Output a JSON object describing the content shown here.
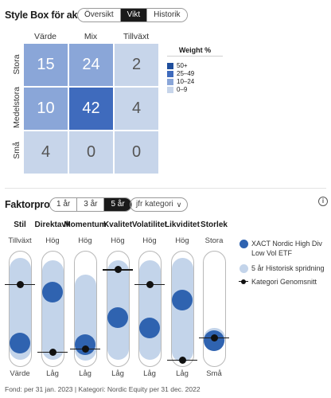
{
  "stylebox": {
    "title": "Style Box för aktier",
    "tabs": [
      {
        "label": "Översikt",
        "active": false
      },
      {
        "label": "Vikt",
        "active": true
      },
      {
        "label": "Historik",
        "active": false
      }
    ],
    "columns": [
      "Värde",
      "Mix",
      "Tillväxt"
    ],
    "rows": [
      "Stora",
      "Medelstora",
      "Små"
    ],
    "cells": [
      [
        {
          "value": "15",
          "color": "#8aa6d8"
        },
        {
          "value": "24",
          "color": "#8aa6d8"
        },
        {
          "value": "2",
          "color": "#c7d5ea"
        }
      ],
      [
        {
          "value": "10",
          "color": "#8aa6d8"
        },
        {
          "value": "42",
          "color": "#3f6bbd"
        },
        {
          "value": "4",
          "color": "#c7d5ea"
        }
      ],
      [
        {
          "value": "4",
          "color": "#c7d5ea"
        },
        {
          "value": "0",
          "color": "#c7d5ea"
        },
        {
          "value": "0",
          "color": "#c7d5ea"
        }
      ]
    ],
    "legend": {
      "title": "Weight %",
      "items": [
        {
          "label": "50+",
          "color": "#1f4e9c"
        },
        {
          "label": "25–49",
          "color": "#3f6bbd"
        },
        {
          "label": "10–24",
          "color": "#8aa6d8"
        },
        {
          "label": "0–9",
          "color": "#c7d5ea"
        }
      ]
    }
  },
  "factor": {
    "title": "Faktorprofil",
    "periods": [
      {
        "label": "1 år",
        "active": false
      },
      {
        "label": "3 år",
        "active": false
      },
      {
        "label": "5 år",
        "active": true
      }
    ],
    "compare_label": "jfr kategori",
    "info_label": "i",
    "factors": [
      {
        "name": "Stil",
        "top": "Tillväxt",
        "bottom": "Värde",
        "fund": 0.2,
        "cat": 0.72,
        "range": [
          0.05,
          0.95
        ]
      },
      {
        "name": "Direktavk",
        "top": "Hög",
        "bottom": "Låg",
        "fund": 0.65,
        "cat": 0.12,
        "range": [
          0.05,
          0.93
        ]
      },
      {
        "name": "Momentum",
        "top": "Hög",
        "bottom": "Låg",
        "fund": 0.18,
        "cat": 0.15,
        "range": [
          0.04,
          0.8
        ]
      },
      {
        "name": "Kvalitet",
        "top": "Hög",
        "bottom": "Låg",
        "fund": 0.42,
        "cat": 0.85,
        "range": [
          0.05,
          0.93
        ]
      },
      {
        "name": "Volatilitet",
        "top": "Hög",
        "bottom": "Låg",
        "fund": 0.33,
        "cat": 0.72,
        "range": [
          0.05,
          0.93
        ]
      },
      {
        "name": "Likviditet",
        "top": "Hög",
        "bottom": "Låg",
        "fund": 0.58,
        "cat": 0.05,
        "range": [
          0.03,
          0.95
        ]
      },
      {
        "name": "Storlek",
        "top": "Stora",
        "bottom": "Små",
        "fund": 0.22,
        "cat": 0.25,
        "range": [
          0.15,
          0.33
        ]
      }
    ],
    "legend": {
      "fund_label": "XACT Nordic High Div Low Vol ETF",
      "range_label": "5 år Historisk spridning",
      "category_label": "Kategori Genomsnitt",
      "fund_color": "#2f63b0",
      "range_color": "#c3d4ea"
    }
  },
  "footer": "Fond: per 31 jan. 2023 | Kategori: Nordic Equity per 31 dec. 2022"
}
